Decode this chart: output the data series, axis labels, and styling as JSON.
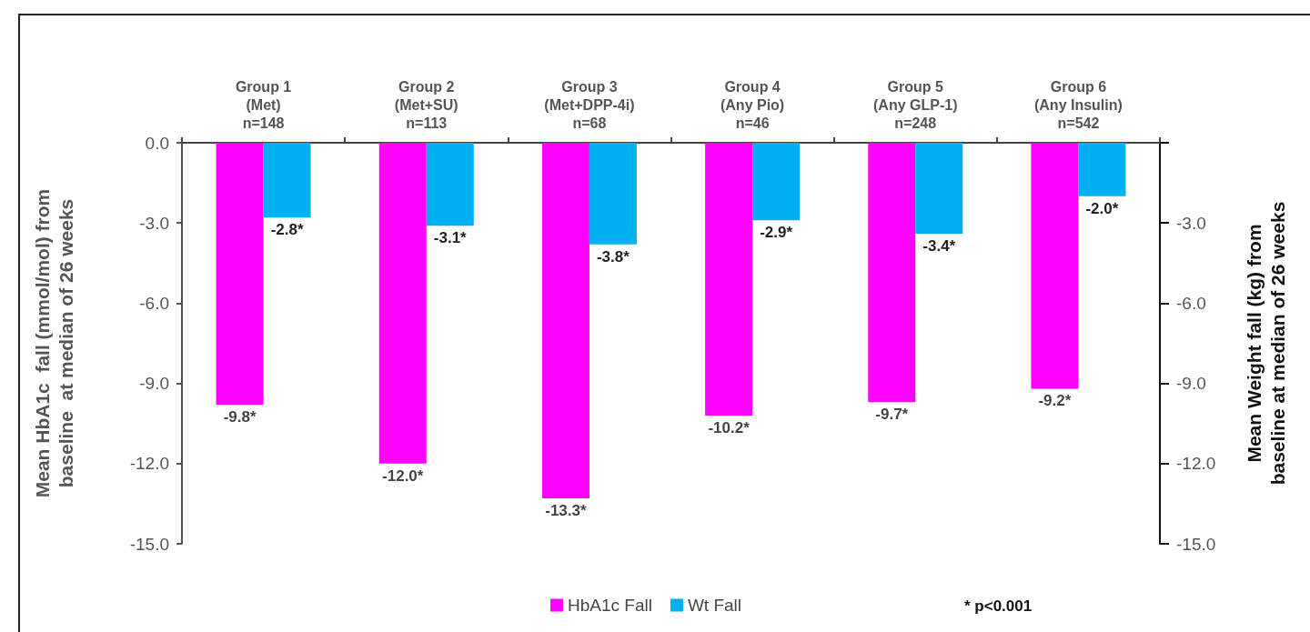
{
  "chart_data": {
    "type": "bar",
    "categories": [
      "Group 1\n(Met)\nn=148",
      "Group 2\n(Met+SU)\nn=113",
      "Group 3\n(Met+DPP-4i)\nn=68",
      "Group 4\n(Any Pio)\nn=46",
      "Group 5\n(Any GLP-1)\nn=248",
      "Group 6\n(Any Insulin)\nn=542"
    ],
    "series": [
      {
        "name": "HbA1c Fall",
        "color": "#ff00ff",
        "values": [
          -9.8,
          -12.0,
          -13.3,
          -10.2,
          -9.7,
          -9.2
        ],
        "value_labels": [
          "-9.8*",
          "-12.0*",
          "-13.3*",
          "-10.2*",
          "-9.7*",
          "-9.2*"
        ]
      },
      {
        "name": "Wt Fall",
        "color": "#00b0f0",
        "axis": "y2",
        "values": [
          -2.8,
          -3.1,
          -3.8,
          -2.9,
          -3.4,
          -2.0
        ],
        "value_labels": [
          "-2.8*",
          "-3.1*",
          "-3.8*",
          "-2.9*",
          "-3.4*",
          "-2.0*"
        ]
      }
    ],
    "ylabel": "Mean HbA1c  fall (mmol/mol) from\nbaseline  at median of 26 weeks",
    "y2label": "Mean Weight fall (kg) from\nbaseline at median of 26 weeks",
    "ylim": [
      -15,
      0
    ],
    "yticks": [
      {
        "value": 0,
        "label": "0.0"
      },
      {
        "value": -3,
        "label": "-3.0"
      },
      {
        "value": -6,
        "label": "-6.0"
      },
      {
        "value": -9,
        "label": "-9.0"
      },
      {
        "value": -12,
        "label": "-12.0"
      },
      {
        "value": -15,
        "label": "-15.0"
      }
    ],
    "y2lim": [
      -15,
      0
    ],
    "y2ticks": [
      {
        "value": 0,
        "label": null
      },
      {
        "value": -3,
        "label": "-3.0"
      },
      {
        "value": -6,
        "label": "-6.0"
      },
      {
        "value": -9,
        "label": "-9.0"
      },
      {
        "value": -12,
        "label": "-12.0"
      },
      {
        "value": -15,
        "label": "-15.0"
      }
    ],
    "legend": "bottom",
    "annotations": [
      "* p<0.001"
    ]
  }
}
